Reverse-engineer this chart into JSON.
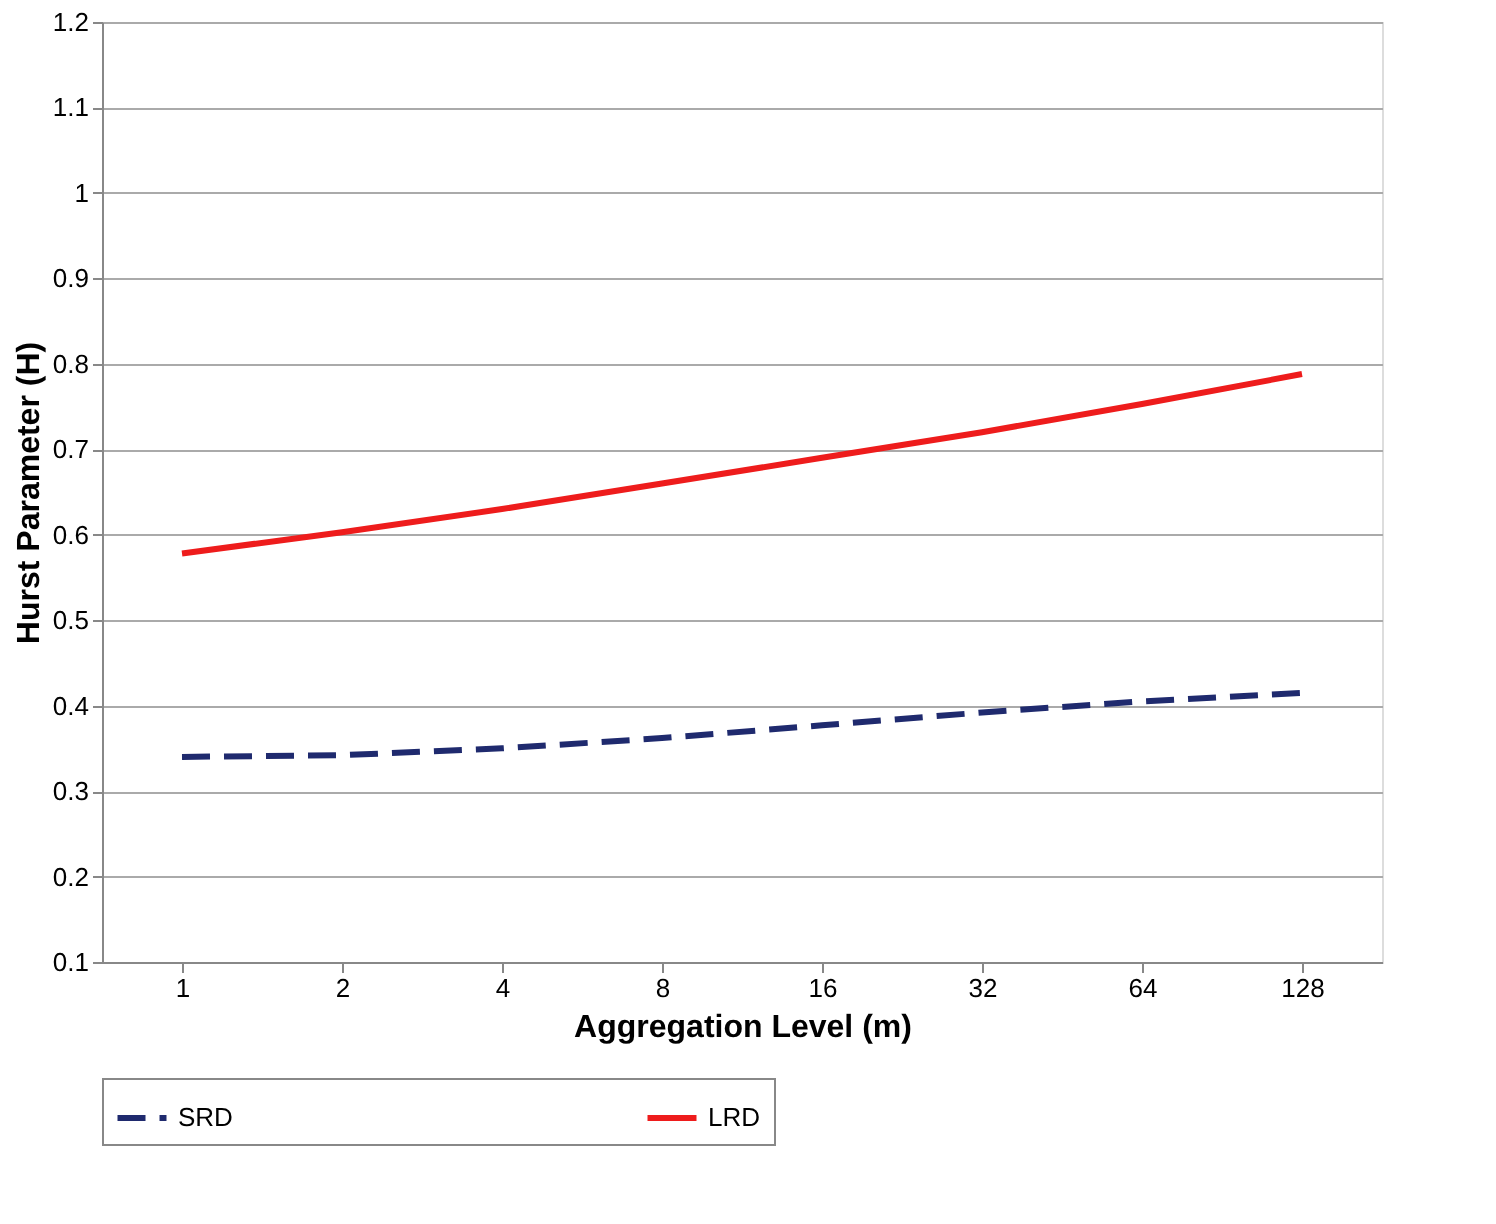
{
  "chart_data": {
    "type": "line",
    "xlabel": "Aggregation  Level (m)",
    "ylabel": "Hurst Parameter (H)",
    "categories": [
      "1",
      "2",
      "4",
      "8",
      "16",
      "32",
      "64",
      "128"
    ],
    "series": [
      {
        "name": "SRD",
        "color": "#1f2a6e",
        "line_style": "dashed",
        "values": [
          0.34,
          0.342,
          0.35,
          0.362,
          0.377,
          0.392,
          0.405,
          0.415
        ]
      },
      {
        "name": "LRD",
        "color": "#ee1c1c",
        "line_style": "solid",
        "values": [
          0.578,
          0.603,
          0.63,
          0.66,
          0.69,
          0.72,
          0.753,
          0.788
        ]
      }
    ],
    "ylim": [
      0.1,
      1.2
    ],
    "yticks": [
      0.1,
      0.2,
      0.3,
      0.4,
      0.5,
      0.6,
      0.7,
      0.8,
      0.9,
      1,
      1.1,
      1.2
    ],
    "grid": "y",
    "legend": "bottom",
    "marker": "none"
  }
}
